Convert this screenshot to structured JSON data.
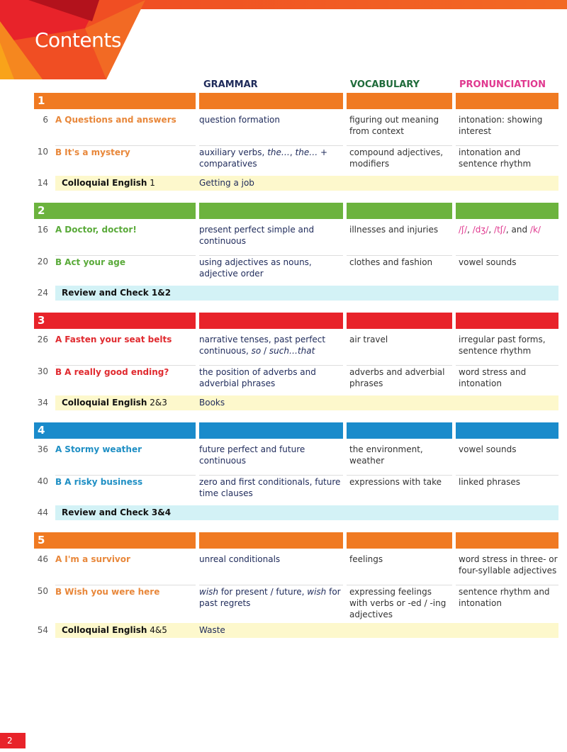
{
  "title": "Contents",
  "columns": {
    "grammar": "GRAMMAR",
    "vocabulary": "VOCABULARY",
    "pronunciation": "PRONUNCIATION"
  },
  "colors": {
    "grammar": "#1e2a5a",
    "vocabulary": "#1f6b3a",
    "pronunciation": "#e0388f",
    "orange": "#f07a22",
    "green": "#6cb33e",
    "red": "#e8232a",
    "blue": "#1a8bcb",
    "yellow_band": "#fdf8cc",
    "cyan_band": "#d3f2f6"
  },
  "units": [
    {
      "number": "1",
      "color": "#f07a22",
      "title_color": "#e8873a",
      "lessons": [
        {
          "page": "6",
          "letter": "A",
          "title": "Questions and answers",
          "grammar": [
            {
              "t": "question formation"
            }
          ],
          "vocabulary": "figuring out meaning from context",
          "pronunciation": [
            {
              "t": "intonation: showing interest"
            }
          ]
        },
        {
          "page": "10",
          "letter": "B",
          "title": "It's a mystery",
          "grammar": [
            {
              "t": "auxiliary verbs, "
            },
            {
              "t": "the…",
              "i": true
            },
            {
              "t": ", "
            },
            {
              "t": "the…",
              "i": true
            },
            {
              "t": " + comparatives"
            }
          ],
          "vocabulary": "compound adjectives, modifiers",
          "pronunciation": [
            {
              "t": "intonation and sentence rhythm"
            }
          ]
        }
      ],
      "band": {
        "page": "14",
        "label": "Colloquial English",
        "suffix": " 1",
        "topic": "Getting a job",
        "type": "yellow"
      }
    },
    {
      "number": "2",
      "color": "#6cb33e",
      "title_color": "#5aaa3a",
      "lessons": [
        {
          "page": "16",
          "letter": "A",
          "title": "Doctor, doctor!",
          "grammar": [
            {
              "t": "present perfect simple and continuous"
            }
          ],
          "vocabulary": "illnesses and injuries",
          "pronunciation": [
            {
              "t": "/ʃ/",
              "c": true
            },
            {
              "t": ", "
            },
            {
              "t": "/dʒ/",
              "c": true
            },
            {
              "t": ", "
            },
            {
              "t": "/tʃ/",
              "c": true
            },
            {
              "t": ", and "
            },
            {
              "t": "/k/",
              "c": true
            }
          ]
        },
        {
          "page": "20",
          "letter": "B",
          "title": "Act your age",
          "grammar": [
            {
              "t": "using adjectives as nouns, adjective order"
            }
          ],
          "vocabulary": "clothes and fashion",
          "pronunciation": [
            {
              "t": "vowel sounds"
            }
          ]
        }
      ],
      "band": {
        "page": "24",
        "label": "Review and Check 1&2",
        "suffix": "",
        "topic": "",
        "type": "cyan"
      }
    },
    {
      "number": "3",
      "color": "#e8232a",
      "title_color": "#e02a2f",
      "lessons": [
        {
          "page": "26",
          "letter": "A",
          "title": "Fasten your seat belts",
          "grammar": [
            {
              "t": "narrative tenses, past perfect continuous, "
            },
            {
              "t": "so",
              "i": true
            },
            {
              "t": " / "
            },
            {
              "t": "such…that",
              "i": true
            }
          ],
          "vocabulary": "air travel",
          "pronunciation": [
            {
              "t": "irregular past forms, sentence rhythm"
            }
          ]
        },
        {
          "page": "30",
          "letter": "B",
          "title": "A really good ending?",
          "grammar": [
            {
              "t": "the position of adverbs and adverbial phrases"
            }
          ],
          "vocabulary": "adverbs and adverbial phrases",
          "pronunciation": [
            {
              "t": "word stress and intonation"
            }
          ]
        }
      ],
      "band": {
        "page": "34",
        "label": "Colloquial English",
        "suffix": " 2&3",
        "topic": "Books",
        "type": "yellow"
      }
    },
    {
      "number": "4",
      "color": "#1a8bcb",
      "title_color": "#1f8fc4",
      "lessons": [
        {
          "page": "36",
          "letter": "A",
          "title": "Stormy weather",
          "grammar": [
            {
              "t": "future perfect and future continuous"
            }
          ],
          "vocabulary": "the environment, weather",
          "pronunciation": [
            {
              "t": "vowel sounds"
            }
          ]
        },
        {
          "page": "40",
          "letter": "B",
          "title": "A risky business",
          "grammar": [
            {
              "t": "zero and first conditionals, future time clauses"
            }
          ],
          "vocabulary": "expressions with take",
          "pronunciation": [
            {
              "t": "linked phrases"
            }
          ]
        }
      ],
      "band": {
        "page": "44",
        "label": "Review and Check 3&4",
        "suffix": "",
        "topic": "",
        "type": "cyan"
      }
    },
    {
      "number": "5",
      "color": "#f07a22",
      "title_color": "#e8873a",
      "lessons": [
        {
          "page": "46",
          "letter": "A",
          "title": "I'm a survivor",
          "grammar": [
            {
              "t": "unreal conditionals"
            }
          ],
          "vocabulary": "feelings",
          "pronunciation": [
            {
              "t": "word stress in three- or four-syllable adjectives"
            }
          ]
        },
        {
          "page": "50",
          "letter": "B",
          "title": "Wish you were here",
          "grammar": [
            {
              "t": "wish",
              "i": true
            },
            {
              "t": " for present / future, "
            },
            {
              "t": "wish",
              "i": true
            },
            {
              "t": " for past regrets"
            }
          ],
          "vocabulary": "expressing feelings with verbs or -ed / -ing adjectives",
          "pronunciation": [
            {
              "t": "sentence rhythm and intonation"
            }
          ]
        }
      ],
      "band": {
        "page": "54",
        "label": "Colloquial English",
        "suffix": " 4&5",
        "topic": "Waste",
        "type": "yellow"
      }
    }
  ],
  "page_number": "2"
}
